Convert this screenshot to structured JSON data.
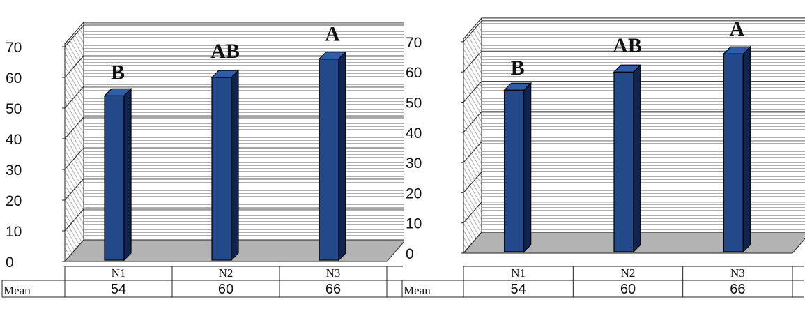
{
  "colors": {
    "bar": "#23498a",
    "bar_side": "#0f2550",
    "bar_top": "#2f5da6",
    "floor": "#b3b3b3",
    "grid": "#4a4a4a"
  },
  "table": {
    "row_label": "Mean"
  },
  "chart_data": [
    {
      "type": "bar",
      "categories": [
        "N1",
        "N2",
        "N3"
      ],
      "values": [
        54,
        60,
        66
      ],
      "value_labels": [
        "54",
        "60",
        "66"
      ],
      "significance_labels": [
        "B",
        "AB",
        "A"
      ],
      "yticks": [
        0,
        10,
        20,
        30,
        40,
        50,
        60,
        70
      ],
      "ylim": [
        0,
        70
      ],
      "grid": true,
      "style": "3d-column-with-data-table"
    },
    {
      "type": "bar",
      "categories": [
        "N1",
        "N2",
        "N3"
      ],
      "values": [
        54,
        60,
        66
      ],
      "value_labels": [
        "54",
        "60",
        "66"
      ],
      "significance_labels": [
        "B",
        "AB",
        "A"
      ],
      "yticks": [
        0,
        10,
        20,
        30,
        40,
        50,
        60,
        70
      ],
      "ylim": [
        0,
        70
      ],
      "grid": true,
      "style": "3d-column-with-data-table"
    }
  ]
}
